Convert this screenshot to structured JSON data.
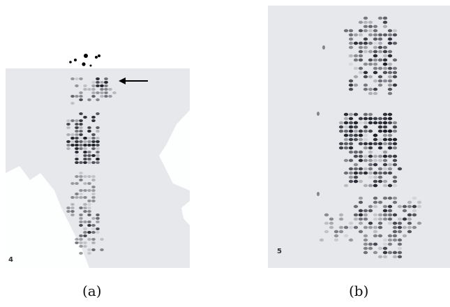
{
  "panels": [
    {
      "caption": "(a)",
      "number": "4"
    },
    {
      "caption": "(b)",
      "number": "5"
    }
  ],
  "colors": {
    "background": "#e6e8ec",
    "spot": "#1e2029",
    "torn_paper": "#ffffff"
  }
}
